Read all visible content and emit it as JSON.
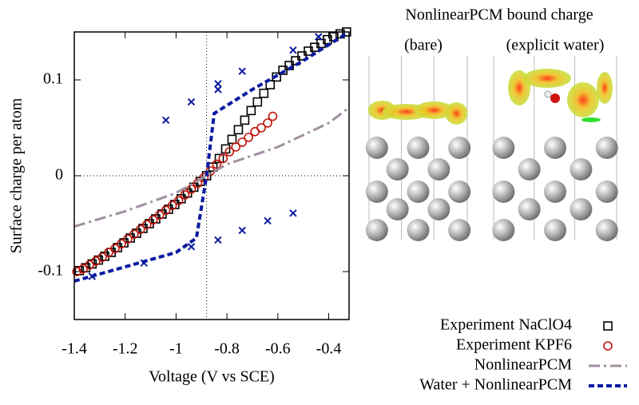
{
  "chart_data": {
    "type": "line",
    "ylabel": "Surface charge per atom",
    "xlabel": "Voltage (V vs SCE)",
    "xlim": [
      -1.4,
      -0.32
    ],
    "ylim": [
      -0.15,
      0.15
    ],
    "xticks": [
      -1.4,
      -1.2,
      -1,
      -0.8,
      -0.6,
      -0.4
    ],
    "yticks": [
      -0.1,
      0,
      0.1
    ],
    "vline": -0.88,
    "hline": 0,
    "series": [
      {
        "name": "Experiment NaClO4",
        "color": "#000000",
        "marker": "square",
        "x": [
          -1.38,
          -1.355,
          -1.33,
          -1.305,
          -1.28,
          -1.255,
          -1.23,
          -1.205,
          -1.18,
          -1.155,
          -1.13,
          -1.105,
          -1.08,
          -1.055,
          -1.03,
          -1.005,
          -0.98,
          -0.955,
          -0.93,
          -0.905,
          -0.88,
          -0.855,
          -0.83,
          -0.805,
          -0.78,
          -0.755,
          -0.73,
          -0.705,
          -0.68,
          -0.655,
          -0.63,
          -0.605,
          -0.58,
          -0.555,
          -0.53,
          -0.505,
          -0.48,
          -0.455,
          -0.43,
          -0.405,
          -0.38,
          -0.355,
          -0.33
        ],
        "values": [
          -0.099,
          -0.096,
          -0.092,
          -0.088,
          -0.084,
          -0.08,
          -0.075,
          -0.07,
          -0.065,
          -0.06,
          -0.055,
          -0.05,
          -0.045,
          -0.04,
          -0.035,
          -0.03,
          -0.024,
          -0.018,
          -0.012,
          -0.006,
          0.0,
          0.009,
          0.018,
          0.028,
          0.038,
          0.048,
          0.058,
          0.068,
          0.077,
          0.086,
          0.095,
          0.103,
          0.11,
          0.115,
          0.12,
          0.125,
          0.13,
          0.134,
          0.138,
          0.142,
          0.145,
          0.148,
          0.15
        ]
      },
      {
        "name": "Experiment KPF6",
        "color": "#c0140c",
        "marker": "circle",
        "x": [
          -1.39,
          -1.365,
          -1.34,
          -1.315,
          -1.29,
          -1.265,
          -1.24,
          -1.215,
          -1.19,
          -1.165,
          -1.14,
          -1.115,
          -1.09,
          -1.065,
          -1.04,
          -1.015,
          -0.99,
          -0.965,
          -0.94,
          -0.915,
          -0.89,
          -0.865,
          -0.84,
          -0.815,
          -0.79,
          -0.765,
          -0.74,
          -0.715,
          -0.69,
          -0.665,
          -0.64,
          -0.62
        ],
        "values": [
          -0.1,
          -0.097,
          -0.093,
          -0.089,
          -0.085,
          -0.08,
          -0.076,
          -0.071,
          -0.066,
          -0.061,
          -0.056,
          -0.051,
          -0.046,
          -0.041,
          -0.036,
          -0.031,
          -0.026,
          -0.02,
          -0.014,
          -0.008,
          -0.002,
          0.005,
          0.012,
          0.018,
          0.025,
          0.03,
          0.035,
          0.04,
          0.046,
          0.05,
          0.055,
          0.062
        ]
      },
      {
        "name": "NonlinearPCM",
        "color": "#a090a0",
        "dash": "14 5 3 5",
        "width": 3,
        "x": [
          -1.4,
          -1.2,
          -1.0,
          -0.88,
          -0.8,
          -0.6,
          -0.4,
          -0.32
        ],
        "values": [
          -0.053,
          -0.037,
          -0.018,
          0,
          0.012,
          0.03,
          0.055,
          0.071
        ]
      },
      {
        "name": "Water + NonlinearPCM",
        "color": "#0a1aa0",
        "dash": "7 4",
        "width": 4,
        "x": [
          -1.4,
          -1.2,
          -1.0,
          -0.92,
          -0.88,
          -0.85,
          -0.7,
          -0.5,
          -0.32
        ],
        "values": [
          -0.11,
          -0.095,
          -0.08,
          -0.065,
          0,
          0.065,
          0.09,
          0.12,
          0.15
        ]
      },
      {
        "color": "#0a1aa0",
        "marker": "x",
        "x": [
          -1.33,
          -1.126,
          -1.04,
          -0.94,
          -0.94,
          -0.835,
          -0.835,
          -0.835,
          -0.74,
          -0.74,
          -0.64,
          -0.54,
          -0.54,
          -0.44
        ],
        "values": [
          -0.105,
          -0.091,
          0.058,
          0.077,
          -0.074,
          0.096,
          0.09,
          -0.067,
          0.109,
          -0.057,
          -0.047,
          -0.039,
          0.131,
          0.145
        ]
      }
    ]
  },
  "images": {
    "title": "NonlinearPCM bound charge",
    "labels": [
      "(bare)",
      "(explicit water)"
    ]
  }
}
